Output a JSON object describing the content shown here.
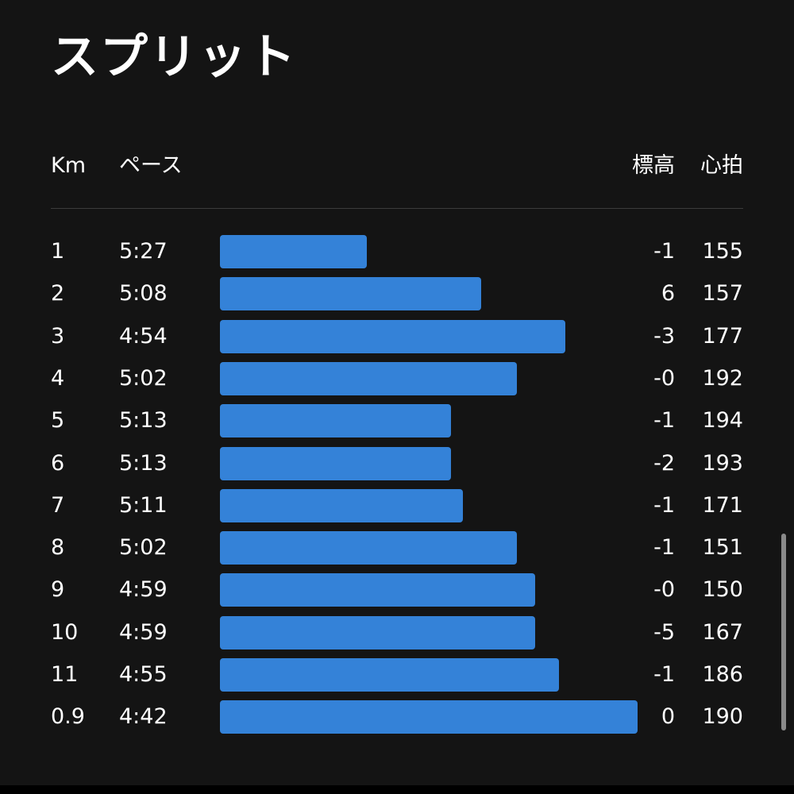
{
  "title": "スプリット",
  "headers": {
    "km": "Km",
    "pace": "ペース",
    "elevation": "標高",
    "heart_rate": "心拍"
  },
  "colors": {
    "background": "#141414",
    "bar": "#3482d8",
    "text": "#ffffff",
    "divider": "#3c3c3c"
  },
  "splits": [
    {
      "km": "1",
      "pace": "5:27",
      "elevation": "-1",
      "heart_rate": "155"
    },
    {
      "km": "2",
      "pace": "5:08",
      "elevation": "6",
      "heart_rate": "157"
    },
    {
      "km": "3",
      "pace": "4:54",
      "elevation": "-3",
      "heart_rate": "177"
    },
    {
      "km": "4",
      "pace": "5:02",
      "elevation": "-0",
      "heart_rate": "192"
    },
    {
      "km": "5",
      "pace": "5:13",
      "elevation": "-1",
      "heart_rate": "194"
    },
    {
      "km": "6",
      "pace": "5:13",
      "elevation": "-2",
      "heart_rate": "193"
    },
    {
      "km": "7",
      "pace": "5:11",
      "elevation": "-1",
      "heart_rate": "171"
    },
    {
      "km": "8",
      "pace": "5:02",
      "elevation": "-1",
      "heart_rate": "151"
    },
    {
      "km": "9",
      "pace": "4:59",
      "elevation": "-0",
      "heart_rate": "150"
    },
    {
      "km": "10",
      "pace": "4:59",
      "elevation": "-5",
      "heart_rate": "167"
    },
    {
      "km": "11",
      "pace": "4:55",
      "elevation": "-1",
      "heart_rate": "186"
    },
    {
      "km": "0.9",
      "pace": "4:42",
      "elevation": "0",
      "heart_rate": "190"
    }
  ]
}
